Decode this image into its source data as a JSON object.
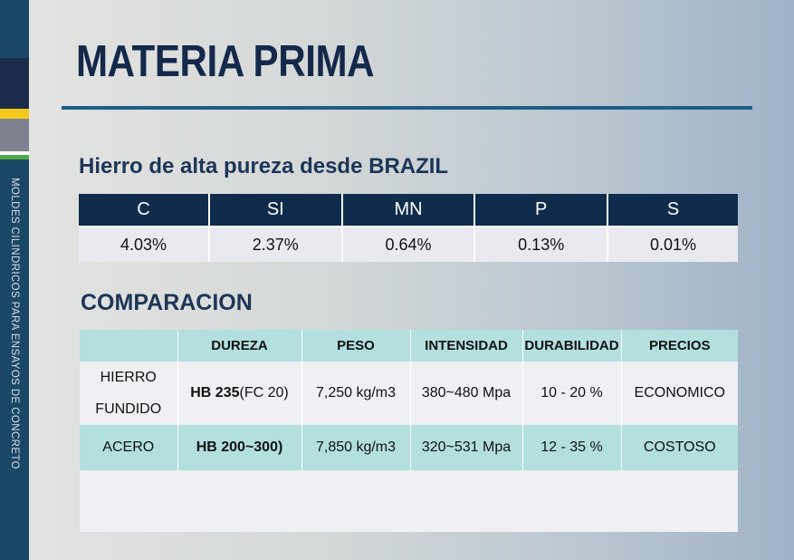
{
  "sidebar": {
    "text": "MOLDES CILINDRICOS PARA ENSAYOS DE CONCRETO"
  },
  "page": {
    "title": "MATERIA PRIMA",
    "subtitle": "Hierro de alta pureza desde BRAZIL"
  },
  "composition": {
    "headers": [
      "C",
      "SI",
      "MN",
      "P",
      "S"
    ],
    "values": [
      "4.03%",
      "2.37%",
      "0.64%",
      "0.13%",
      "0.01%"
    ]
  },
  "comparison": {
    "heading": "COMPARACION",
    "headers": [
      "",
      "DUREZA",
      "PESO",
      "INTENSIDAD",
      "DURABILIDAD",
      "PRECIOS"
    ],
    "rows": [
      {
        "material_line1": "HIERRO",
        "material_line2": "FUNDIDO",
        "dureza_bold": "HB 235",
        "dureza_rest": "(FC 20)",
        "peso": "7,250 kg/m3",
        "intensidad": "380~480 Mpa",
        "durabilidad": "10 - 20 %",
        "precios": "ECONOMICO"
      },
      {
        "material": "ACERO",
        "dureza": "HB 200~300)",
        "peso": "7,850 kg/m3",
        "intensidad": "320~531 Mpa",
        "durabilidad": "12 - 35 %",
        "precios": "COSTOSO"
      }
    ]
  },
  "colors": {
    "navy": "#0f2c4d",
    "teal": "#b3dfdf",
    "sidebar": "#1b4766"
  }
}
